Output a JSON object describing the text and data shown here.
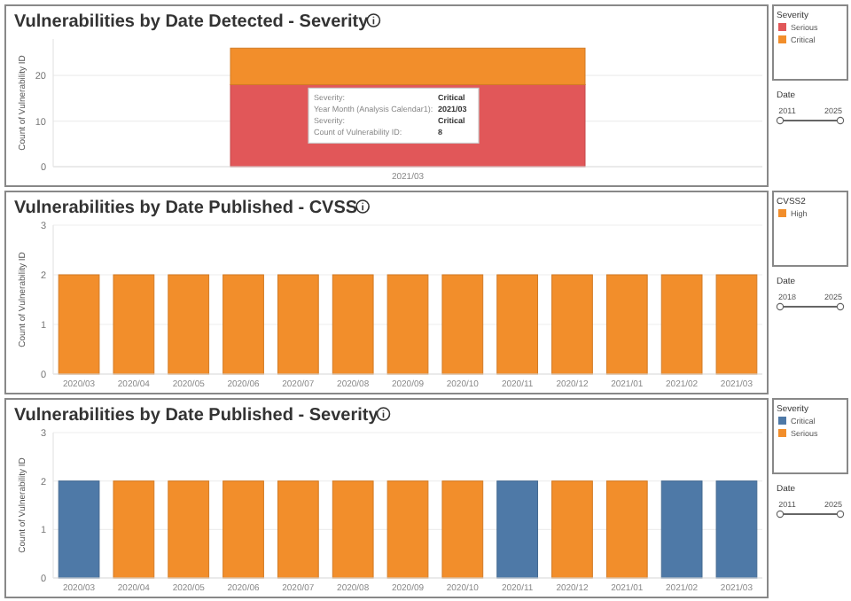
{
  "chart_data": [
    {
      "type": "bar",
      "title": "Vulnerabilities by Date Detected - Severity",
      "ylabel": "Count of Vulnerability ID",
      "legend_title": "Severity",
      "categories": [
        "2021/03"
      ],
      "stacked": true,
      "grid": "y",
      "legend": "right",
      "ylim": [
        0,
        28
      ],
      "yticks": [
        0,
        10,
        20
      ],
      "series": [
        {
          "name": "Serious",
          "color": "#e15759",
          "values": [
            18
          ]
        },
        {
          "name": "Critical",
          "color": "#f28e2b",
          "values": [
            8
          ]
        }
      ],
      "annotations": [
        "Date",
        "2011",
        "2025",
        "Severity:",
        "Critical",
        "Year Month (Analysis Calendar1):",
        "2021/03",
        "Severity:",
        "Critical",
        "Count of Vulnerability ID:",
        "8"
      ]
    },
    {
      "type": "bar",
      "title": "Vulnerabilities by Date Published - CVSS",
      "ylabel": "Count of Vulnerability ID",
      "legend_title": "CVSS2",
      "categories": [
        "2020/03",
        "2020/04",
        "2020/05",
        "2020/06",
        "2020/07",
        "2020/08",
        "2020/09",
        "2020/10",
        "2020/11",
        "2020/12",
        "2021/01",
        "2021/02",
        "2021/03"
      ],
      "stacked": true,
      "grid": "y",
      "legend": "right",
      "ylim": [
        0,
        3
      ],
      "yticks": [
        0,
        1,
        2,
        3
      ],
      "series": [
        {
          "name": "High",
          "color": "#f28e2b",
          "values": [
            2,
            2,
            2,
            2,
            2,
            2,
            2,
            2,
            2,
            2,
            2,
            2,
            2
          ]
        }
      ],
      "annotations": [
        "Date",
        "2018",
        "2025"
      ]
    },
    {
      "type": "bar",
      "title": "Vulnerabilities by Date Published - Severity",
      "ylabel": "Count of Vulnerability ID",
      "legend_title": "Severity",
      "categories": [
        "2020/03",
        "2020/04",
        "2020/05",
        "2020/06",
        "2020/07",
        "2020/08",
        "2020/09",
        "2020/10",
        "2020/11",
        "2020/12",
        "2021/01",
        "2021/02",
        "2021/03"
      ],
      "stacked": true,
      "grid": "y",
      "legend": "right",
      "ylim": [
        0,
        3
      ],
      "yticks": [
        0,
        1,
        2,
        3
      ],
      "series": [
        {
          "name": "Critical",
          "color": "#4e79a7",
          "values": [
            2,
            null,
            null,
            null,
            null,
            null,
            null,
            null,
            2,
            null,
            null,
            2,
            2
          ]
        },
        {
          "name": "Serious",
          "color": "#f28e2b",
          "values": [
            null,
            2,
            2,
            2,
            2,
            2,
            2,
            2,
            null,
            2,
            2,
            null,
            null
          ]
        }
      ],
      "annotations": [
        "Date",
        "2011",
        "2025"
      ]
    }
  ]
}
